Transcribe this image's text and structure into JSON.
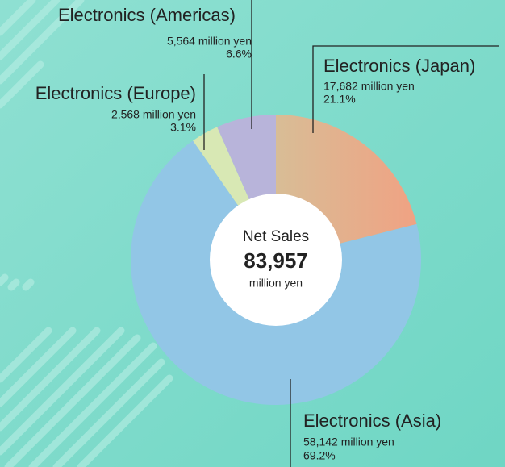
{
  "chart_data": {
    "type": "pie",
    "center_title": "Net Sales",
    "center_total": "83,957",
    "center_unit": "million yen",
    "categories": [
      "Electronics (Japan)",
      "Electronics (Asia)",
      "Electronics (Europe)",
      "Electronics (Americas)"
    ],
    "values": [
      17682,
      58142,
      2568,
      5564
    ],
    "value_labels": [
      "17,682 million yen",
      "58,142 million yen",
      "2,568 million yen",
      "5,564 million yen"
    ],
    "shares": [
      21.1,
      69.2,
      3.1,
      6.6
    ],
    "share_labels": [
      "21.1%",
      "69.2%",
      "3.1%",
      "6.6%"
    ],
    "colors": [
      "#eaa98a",
      "#92c6e6",
      "#d8e8b4",
      "#b8b4da"
    ]
  }
}
